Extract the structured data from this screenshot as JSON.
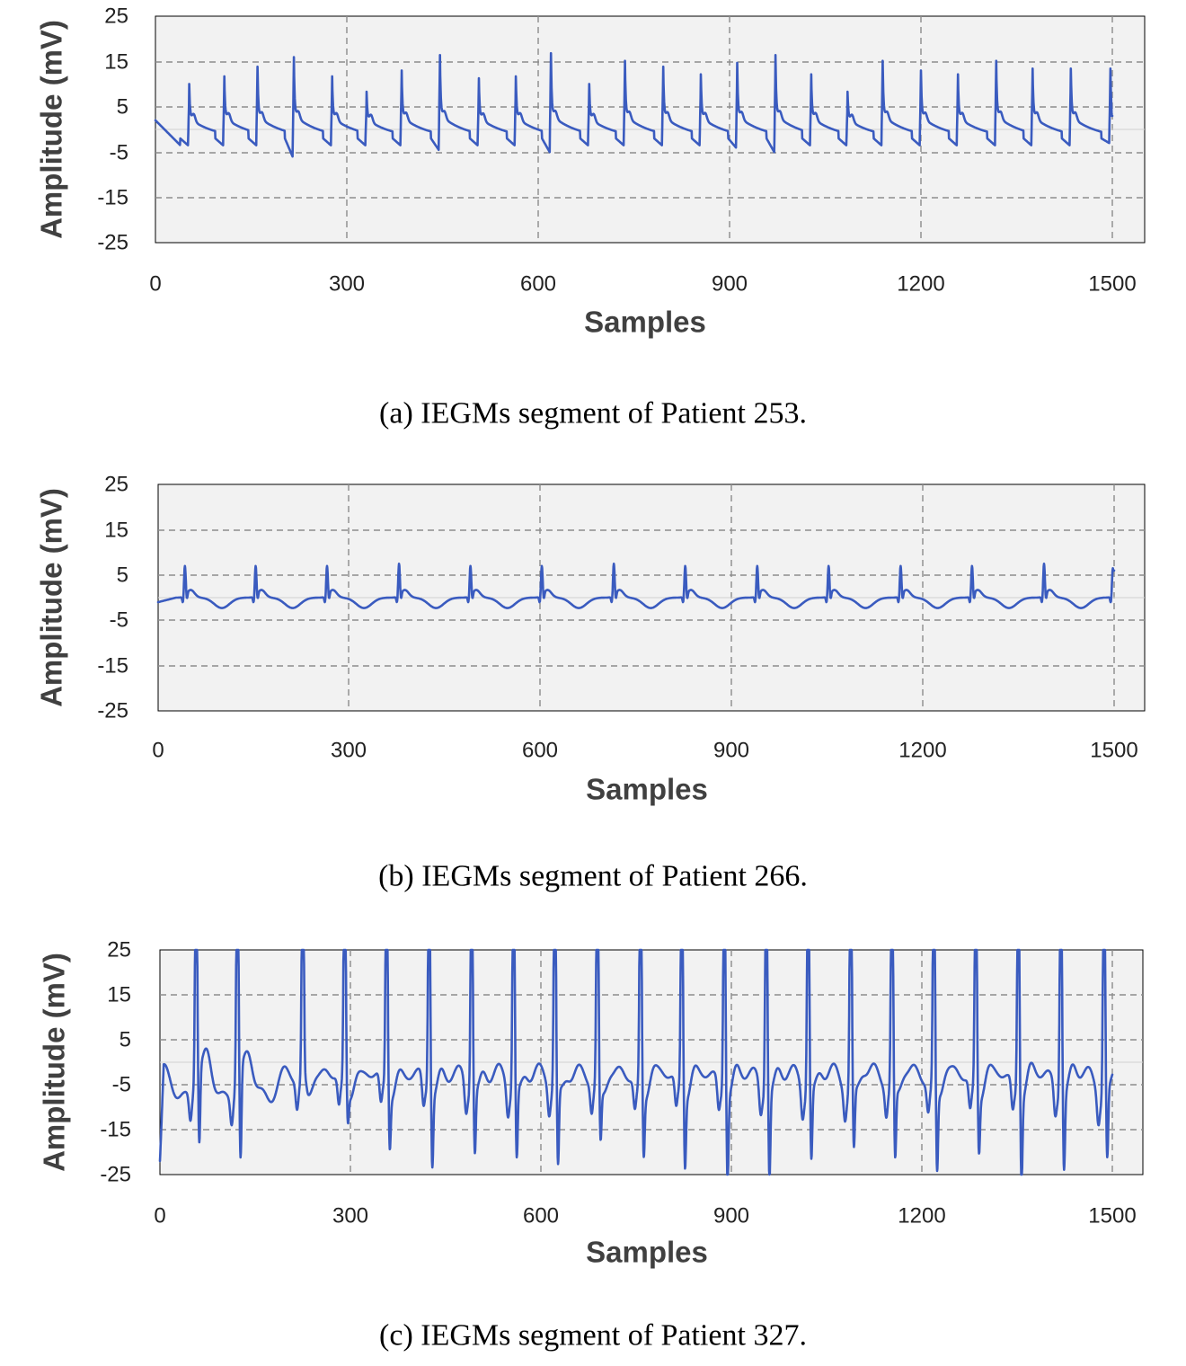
{
  "chart_data": [
    {
      "type": "line",
      "caption": "(a) IEGMs segment of Patient 253.",
      "xlabel": "Samples",
      "ylabel": "Amplitude (mV)",
      "xlim": [
        0,
        1500
      ],
      "ylim": [
        -25,
        25
      ],
      "x_ticks": [
        "0",
        "300",
        "600",
        "900",
        "1200",
        "1500"
      ],
      "y_ticks": [
        "25",
        "15",
        "5",
        "-5",
        "-15",
        "-25"
      ],
      "grid": true,
      "series": [
        {
          "color": "#3a5bbf",
          "beat_style": "sharp-spike-with-decay",
          "baseline": -2,
          "start_value": 2,
          "end_value": 3,
          "spikes": [
            {
              "x": 53,
              "peak": 8,
              "trough": -3.5
            },
            {
              "x": 108,
              "peak": 10,
              "trough": -3.5
            },
            {
              "x": 160,
              "peak": 12.5,
              "trough": -3.5
            },
            {
              "x": 217,
              "peak": 15,
              "trough": -6
            },
            {
              "x": 277,
              "peak": 10,
              "trough": -3.5
            },
            {
              "x": 331,
              "peak": 6,
              "trough": -3.5
            },
            {
              "x": 386,
              "peak": 11.5,
              "trough": -3.5
            },
            {
              "x": 446,
              "peak": 15.5,
              "trough": -4.5
            },
            {
              "x": 507,
              "peak": 9.5,
              "trough": -3.5
            },
            {
              "x": 565,
              "peak": 10,
              "trough": -3.5
            },
            {
              "x": 620,
              "peak": 16,
              "trough": -5
            },
            {
              "x": 680,
              "peak": 8,
              "trough": -3.5
            },
            {
              "x": 736,
              "peak": 14,
              "trough": -3.5
            },
            {
              "x": 796,
              "peak": 12.5,
              "trough": -3.5
            },
            {
              "x": 855,
              "peak": 10.5,
              "trough": -3.5
            },
            {
              "x": 912,
              "peak": 13.5,
              "trough": -4
            },
            {
              "x": 972,
              "peak": 15.5,
              "trough": -5
            },
            {
              "x": 1028,
              "peak": 10.5,
              "trough": -3.5
            },
            {
              "x": 1085,
              "peak": 6,
              "trough": -3.5
            },
            {
              "x": 1140,
              "peak": 14,
              "trough": -3.5
            },
            {
              "x": 1200,
              "peak": 11.5,
              "trough": -3.5
            },
            {
              "x": 1258,
              "peak": 10.5,
              "trough": -3.5
            },
            {
              "x": 1318,
              "peak": 14,
              "trough": -3.5
            },
            {
              "x": 1375,
              "peak": 12,
              "trough": -3.5
            },
            {
              "x": 1435,
              "peak": 12,
              "trough": -3.5
            },
            {
              "x": 1497,
              "peak": 12,
              "trough": -3
            }
          ]
        }
      ]
    },
    {
      "type": "line",
      "caption": "(b) IEGMs segment of Patient 266.",
      "xlabel": "Samples",
      "ylabel": "Amplitude (mV)",
      "xlim": [
        0,
        1500
      ],
      "ylim": [
        -25,
        25
      ],
      "x_ticks": [
        "0",
        "300",
        "600",
        "900",
        "1200",
        "1500"
      ],
      "y_ticks": [
        "25",
        "15",
        "5",
        "-5",
        "-15",
        "-25"
      ],
      "grid": true,
      "series": [
        {
          "color": "#3a5bbf",
          "beat_style": "small-spike-with-wave",
          "baseline": 0,
          "start_value": -1,
          "end_value": 6,
          "spikes": [
            {
              "x": 42,
              "peak": 6.5,
              "trough": -1.5
            },
            {
              "x": 153,
              "peak": 6.5,
              "trough": -1.5
            },
            {
              "x": 265,
              "peak": 6.5,
              "trough": -1.5
            },
            {
              "x": 378,
              "peak": 7,
              "trough": -1.5
            },
            {
              "x": 490,
              "peak": 6.5,
              "trough": -1.5
            },
            {
              "x": 602,
              "peak": 6.5,
              "trough": -1.5
            },
            {
              "x": 715,
              "peak": 7,
              "trough": -1.5
            },
            {
              "x": 827,
              "peak": 6.5,
              "trough": -1.5
            },
            {
              "x": 940,
              "peak": 6.5,
              "trough": -1.5
            },
            {
              "x": 1052,
              "peak": 6.5,
              "trough": -1.5
            },
            {
              "x": 1165,
              "peak": 6.5,
              "trough": -1.5
            },
            {
              "x": 1277,
              "peak": 6.5,
              "trough": -1.5
            },
            {
              "x": 1390,
              "peak": 7,
              "trough": -1.5
            },
            {
              "x": 1498,
              "peak": 6,
              "trough": -1.5
            }
          ]
        }
      ]
    },
    {
      "type": "line",
      "caption": "(c) IEGMs segment of Patient 327.",
      "xlabel": "Samples",
      "ylabel": "Amplitude (mV)",
      "xlim": [
        0,
        1500
      ],
      "ylim": [
        -25,
        25
      ],
      "x_ticks": [
        "0",
        "300",
        "600",
        "900",
        "1200",
        "1500"
      ],
      "y_ticks": [
        "25",
        "15",
        "5",
        "-5",
        "-15",
        "-25"
      ],
      "grid": true,
      "series": [
        {
          "color": "#3a5bbf",
          "beat_style": "large-clipped-spike-with-oscillation",
          "baseline": -5,
          "start_value": -22,
          "end_value": -3,
          "spikes": [
            {
              "x": 57,
              "peak": 25,
              "trough": -21
            },
            {
              "x": 122,
              "peak": 25,
              "trough": -25
            },
            {
              "x": 225,
              "peak": 25,
              "trough": -3
            },
            {
              "x": 291,
              "peak": 25,
              "trough": -11
            },
            {
              "x": 357,
              "peak": 25,
              "trough": -16
            },
            {
              "x": 424,
              "peak": 25,
              "trough": -20
            },
            {
              "x": 491,
              "peak": 25,
              "trough": -18
            },
            {
              "x": 557,
              "peak": 25,
              "trough": -20
            },
            {
              "x": 622,
              "peak": 25,
              "trough": -22
            },
            {
              "x": 689,
              "peak": 25,
              "trough": -16
            },
            {
              "x": 757,
              "peak": 25,
              "trough": -18
            },
            {
              "x": 822,
              "peak": 25,
              "trough": -20
            },
            {
              "x": 889,
              "peak": 25,
              "trough": -23
            },
            {
              "x": 955,
              "peak": 25,
              "trough": -23
            },
            {
              "x": 1021,
              "peak": 25,
              "trough": -20
            },
            {
              "x": 1088,
              "peak": 25,
              "trough": -18
            },
            {
              "x": 1153,
              "peak": 25,
              "trough": -20
            },
            {
              "x": 1219,
              "peak": 25,
              "trough": -22
            },
            {
              "x": 1285,
              "peak": 25,
              "trough": -17
            },
            {
              "x": 1352,
              "peak": 25,
              "trough": -23
            },
            {
              "x": 1419,
              "peak": 25,
              "trough": -21
            },
            {
              "x": 1487,
              "peak": 25,
              "trough": -20
            }
          ]
        }
      ]
    }
  ]
}
